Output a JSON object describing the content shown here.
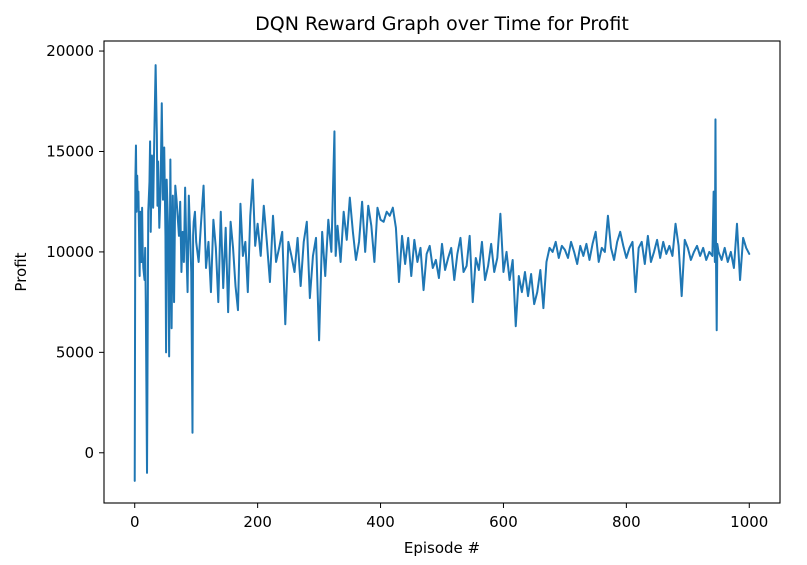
{
  "colors": {
    "series_line": "#1f77b4",
    "axes": "#000000",
    "background": "#ffffff"
  },
  "chart_data": {
    "type": "line",
    "title": "DQN Reward Graph over Time for Profit",
    "xlabel": "Episode #",
    "ylabel": "Profit",
    "xlim": [
      -50,
      1050
    ],
    "ylim": [
      -2500,
      20500
    ],
    "x_ticks": [
      0,
      200,
      400,
      600,
      800,
      1000
    ],
    "x_tick_labels": [
      "0",
      "200",
      "400",
      "600",
      "800",
      "1000"
    ],
    "y_ticks": [
      0,
      5000,
      10000,
      15000,
      20000
    ],
    "y_tick_labels": [
      "0",
      "5000",
      "10000",
      "15000",
      "20000"
    ],
    "grid": false,
    "series": [
      {
        "x": [
          0,
          1,
          2,
          3,
          4,
          5,
          6,
          7,
          8,
          9,
          10,
          11,
          12,
          13,
          14,
          16,
          17,
          18,
          20,
          22,
          24,
          25,
          26,
          28,
          30,
          32,
          34,
          36,
          37,
          38,
          40,
          42,
          44,
          46,
          48,
          50,
          51,
          52,
          54,
          56,
          58,
          60,
          62,
          64,
          66,
          68,
          70,
          72,
          74,
          76,
          78,
          80,
          82,
          84,
          86,
          88,
          90,
          92,
          94,
          95,
          96,
          98,
          100,
          104,
          108,
          112,
          116,
          120,
          124,
          128,
          132,
          136,
          140,
          144,
          148,
          152,
          156,
          160,
          164,
          168,
          172,
          176,
          180,
          184,
          188,
          192,
          196,
          200,
          205,
          210,
          215,
          220,
          225,
          230,
          235,
          240,
          245,
          250,
          255,
          260,
          265,
          270,
          275,
          280,
          285,
          290,
          295,
          300,
          305,
          310,
          315,
          320,
          325,
          326,
          327,
          330,
          335,
          340,
          345,
          350,
          355,
          360,
          365,
          370,
          375,
          380,
          385,
          390,
          395,
          400,
          405,
          410,
          415,
          420,
          425,
          430,
          435,
          440,
          445,
          450,
          455,
          460,
          465,
          470,
          475,
          480,
          485,
          490,
          495,
          500,
          505,
          510,
          515,
          520,
          525,
          530,
          535,
          540,
          545,
          550,
          555,
          560,
          565,
          570,
          575,
          580,
          585,
          590,
          595,
          600,
          605,
          610,
          615,
          620,
          625,
          630,
          635,
          640,
          645,
          650,
          655,
          660,
          665,
          670,
          675,
          680,
          685,
          690,
          695,
          700,
          705,
          710,
          715,
          720,
          725,
          730,
          735,
          740,
          745,
          750,
          755,
          760,
          765,
          770,
          775,
          780,
          785,
          790,
          795,
          800,
          805,
          810,
          815,
          820,
          825,
          830,
          835,
          840,
          845,
          850,
          855,
          860,
          865,
          870,
          875,
          880,
          885,
          890,
          895,
          900,
          905,
          910,
          915,
          920,
          925,
          930,
          935,
          940,
          942,
          944,
          945,
          946,
          947,
          948,
          950,
          955,
          960,
          965,
          970,
          975,
          980,
          985,
          990,
          995,
          1000
        ],
        "y": [
          -1400,
          13500,
          15300,
          12000,
          13800,
          12500,
          13000,
          11000,
          8800,
          12000,
          10500,
          9500,
          12200,
          10000,
          9200,
          8600,
          10200,
          7500,
          -1000,
          12000,
          13500,
          15500,
          11000,
          14800,
          12200,
          16000,
          19300,
          15800,
          12300,
          14500,
          11200,
          13000,
          17400,
          12600,
          15200,
          10800,
          5000,
          13600,
          11500,
          4800,
          14600,
          6200,
          12800,
          7500,
          13300,
          12600,
          11700,
          10800,
          12500,
          9000,
          11000,
          9500,
          13200,
          10200,
          8000,
          12800,
          11000,
          9000,
          1000,
          10800,
          11500,
          12000,
          10500,
          9500,
          11500,
          13300,
          9200,
          10500,
          8000,
          11600,
          10200,
          7500,
          12000,
          8200,
          11200,
          7000,
          11500,
          10200,
          8300,
          7100,
          12400,
          9800,
          10500,
          8000,
          11800,
          13600,
          10300,
          11400,
          9800,
          12300,
          10500,
          8500,
          11800,
          9500,
          10200,
          11000,
          6400,
          10500,
          9800,
          9000,
          10700,
          8300,
          10500,
          11500,
          7700,
          9800,
          10700,
          5600,
          11000,
          8800,
          11600,
          10000,
          16000,
          12000,
          9800,
          11300,
          9500,
          12000,
          10600,
          12700,
          11000,
          9600,
          10500,
          12500,
          10000,
          12300,
          11300,
          9500,
          12200,
          11600,
          11500,
          12000,
          11800,
          12200,
          11200,
          8500,
          10800,
          9400,
          10700,
          8800,
          10600,
          9500,
          10200,
          8100,
          9900,
          10300,
          9200,
          9600,
          8700,
          10400,
          9100,
          9700,
          10200,
          8600,
          9900,
          10700,
          9000,
          9300,
          10800,
          7500,
          9700,
          9100,
          10500,
          8600,
          9300,
          10400,
          9000,
          9700,
          11900,
          9000,
          10000,
          8600,
          9600,
          6300,
          8800,
          8000,
          9000,
          7800,
          8900,
          7400,
          8000,
          9100,
          7200,
          9500,
          10200,
          10000,
          10500,
          9700,
          10300,
          10100,
          9700,
          10500,
          10000,
          9400,
          10300,
          9800,
          10400,
          9600,
          10400,
          11000,
          9500,
          10200,
          10000,
          11800,
          10200,
          9600,
          10500,
          11000,
          10300,
          9700,
          10200,
          10500,
          8000,
          10200,
          10500,
          9400,
          10800,
          9500,
          10000,
          10600,
          9700,
          10500,
          9900,
          10300,
          9800,
          11400,
          10300,
          7800,
          10600,
          10200,
          9600,
          10000,
          10300,
          9800,
          10200,
          9600,
          10000,
          9800,
          13000,
          9500,
          16600,
          9200,
          6100,
          10400,
          10000,
          9600,
          10200,
          9500,
          10000,
          9200,
          11400,
          8600,
          10700,
          10200,
          9900
        ]
      }
    ]
  }
}
